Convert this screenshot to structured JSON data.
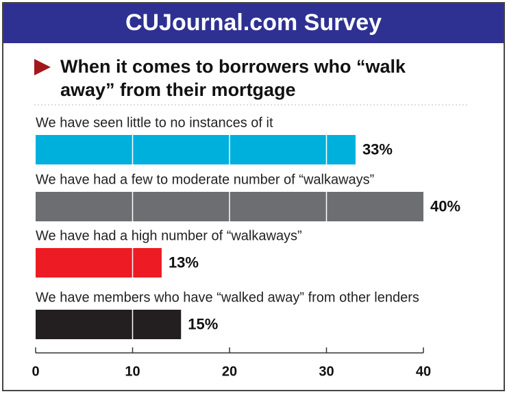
{
  "chart_data": {
    "type": "hbar",
    "title": "CUJournal.com Survey",
    "subtitle": "When it comes to borrowers who “walk away” from their mortgage",
    "categories": [
      "We have seen little to no instances of it",
      "We have had a few to moderate number of “walkaways”",
      "We have had a high number of “walkaways”",
      "We have members who have “walked away” from other lenders"
    ],
    "values": [
      33,
      40,
      13,
      15
    ],
    "value_labels": [
      "33%",
      "40%",
      "13%",
      "15%"
    ],
    "colors": [
      "#00b0dc",
      "#6d6e71",
      "#ed1c24",
      "#231f20"
    ],
    "xlim": [
      0,
      40
    ],
    "xticks": [
      0,
      10,
      20,
      30,
      40
    ],
    "grid": true
  }
}
